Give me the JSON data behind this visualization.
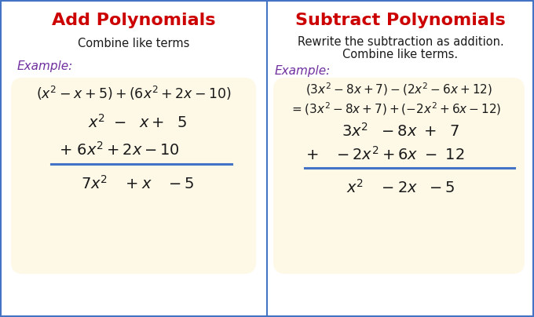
{
  "fig_width": 6.8,
  "fig_height": 4.04,
  "dpi": 100,
  "bg_color": "#ffffff",
  "panel_bg": "#fef9e7",
  "border_color": "#4472c4",
  "title_color": "#cc0000",
  "example_color": "#7030a0",
  "body_color": "#1a1a1a",
  "math_color": "#1a1a1a",
  "title_left": "Add Polynomials",
  "title_right": "Subtract Polynomials",
  "desc_left": "Combine like terms",
  "desc_right_1": "Rewrite the subtraction as addition.",
  "desc_right_2": "Combine like terms.",
  "example_label": "Example:",
  "title_fontsize": 16,
  "desc_fontsize": 10.5,
  "example_fontsize": 11,
  "math_fontsize_lg": 14,
  "math_fontsize_sm": 11
}
